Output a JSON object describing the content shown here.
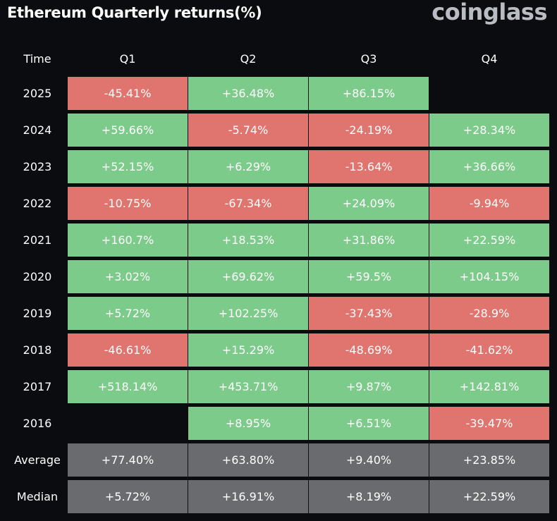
{
  "title": "Ethereum Quarterly returns(%)",
  "brand": "coinglass",
  "colors": {
    "positive": "#7dcb8a",
    "negative": "#e0756f",
    "summary": "#6a6b6e",
    "background": "#0b0c10"
  },
  "chart_data": {
    "type": "heatmap",
    "title": "Ethereum Quarterly returns(%)",
    "corner_label": "Time",
    "columns": [
      "Q1",
      "Q2",
      "Q3",
      "Q4"
    ],
    "rows": [
      {
        "label": "2025",
        "values": [
          "-45.41%",
          "+36.48%",
          "+86.15%",
          ""
        ]
      },
      {
        "label": "2024",
        "values": [
          "+59.66%",
          "-5.74%",
          "-24.19%",
          "+28.34%"
        ]
      },
      {
        "label": "2023",
        "values": [
          "+52.15%",
          "+6.29%",
          "-13.64%",
          "+36.66%"
        ]
      },
      {
        "label": "2022",
        "values": [
          "-10.75%",
          "-67.34%",
          "+24.09%",
          "-9.94%"
        ]
      },
      {
        "label": "2021",
        "values": [
          "+160.7%",
          "+18.53%",
          "+31.86%",
          "+22.59%"
        ]
      },
      {
        "label": "2020",
        "values": [
          "+3.02%",
          "+69.62%",
          "+59.5%",
          "+104.15%"
        ]
      },
      {
        "label": "2019",
        "values": [
          "+5.72%",
          "+102.25%",
          "-37.43%",
          "-28.9%"
        ]
      },
      {
        "label": "2018",
        "values": [
          "-46.61%",
          "+15.29%",
          "-48.69%",
          "-41.62%"
        ]
      },
      {
        "label": "2017",
        "values": [
          "+518.14%",
          "+453.71%",
          "+9.87%",
          "+142.81%"
        ]
      },
      {
        "label": "2016",
        "values": [
          "",
          "+8.95%",
          "+6.51%",
          "-39.47%"
        ]
      }
    ],
    "summary_rows": [
      {
        "label": "Average",
        "values": [
          "+77.40%",
          "+63.80%",
          "+9.40%",
          "+23.85%"
        ]
      },
      {
        "label": "Median",
        "values": [
          "+5.72%",
          "+16.91%",
          "+8.19%",
          "+22.59%"
        ]
      }
    ]
  }
}
